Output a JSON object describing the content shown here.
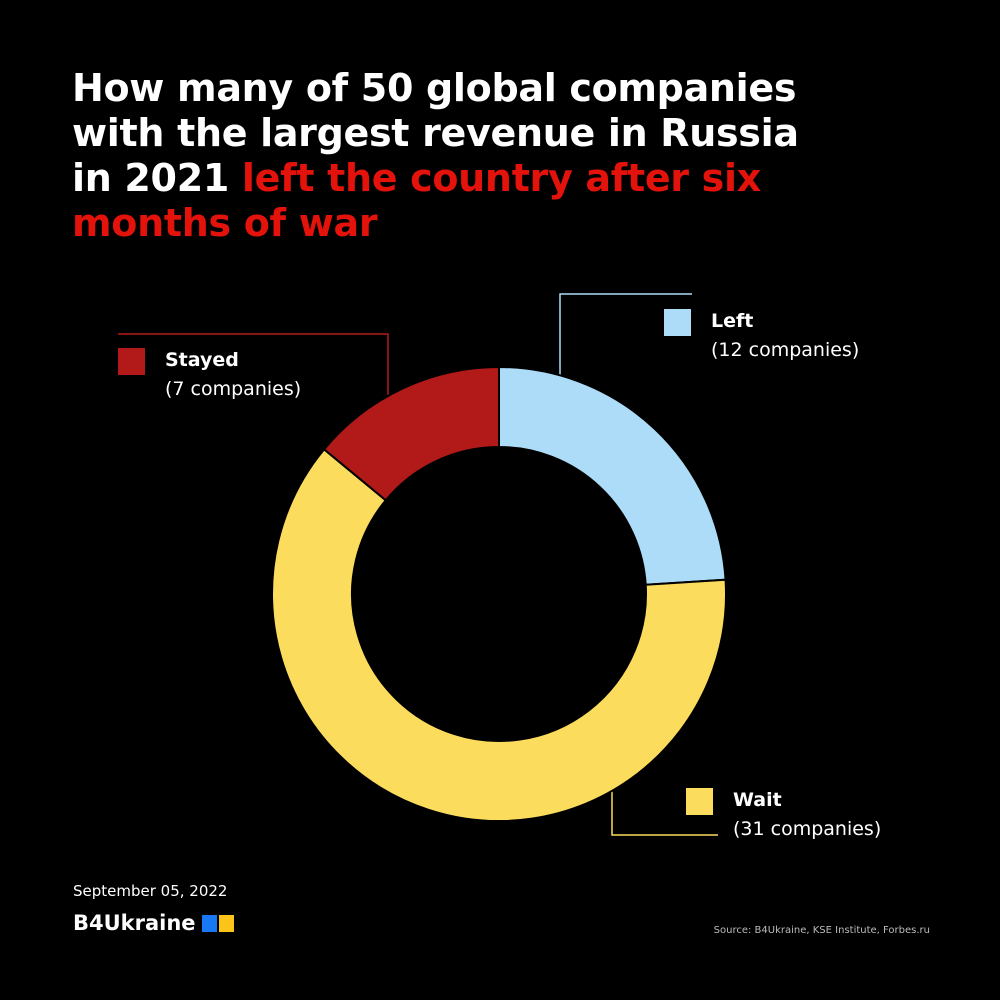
{
  "title": {
    "part1": "How many of 50 global companies with the largest revenue in Russia in 2021 ",
    "part2": "left the country after six months of war"
  },
  "colors": {
    "highlight": "#e3120b",
    "left": "#acdcf8",
    "wait": "#fcdc5d",
    "stayed": "#b21a19",
    "logo_blue": "#1877f2",
    "logo_yellow": "#fcc419"
  },
  "chart_data": {
    "type": "pie",
    "donut": true,
    "total": 50,
    "slices": [
      {
        "name": "Left",
        "label": "(12 companies)",
        "value": 12,
        "color": "#acdcf8"
      },
      {
        "name": "Wait",
        "label": "(31 companies)",
        "value": 31,
        "color": "#fcdc5d"
      },
      {
        "name": "Stayed",
        "label": "(7 companies)",
        "value": 7,
        "color": "#b21a19"
      }
    ]
  },
  "footer": {
    "date": "September 05, 2022",
    "logo": "B4Ukraine",
    "source": "Source: B4Ukraine, KSE Institute, Forbes.ru"
  }
}
